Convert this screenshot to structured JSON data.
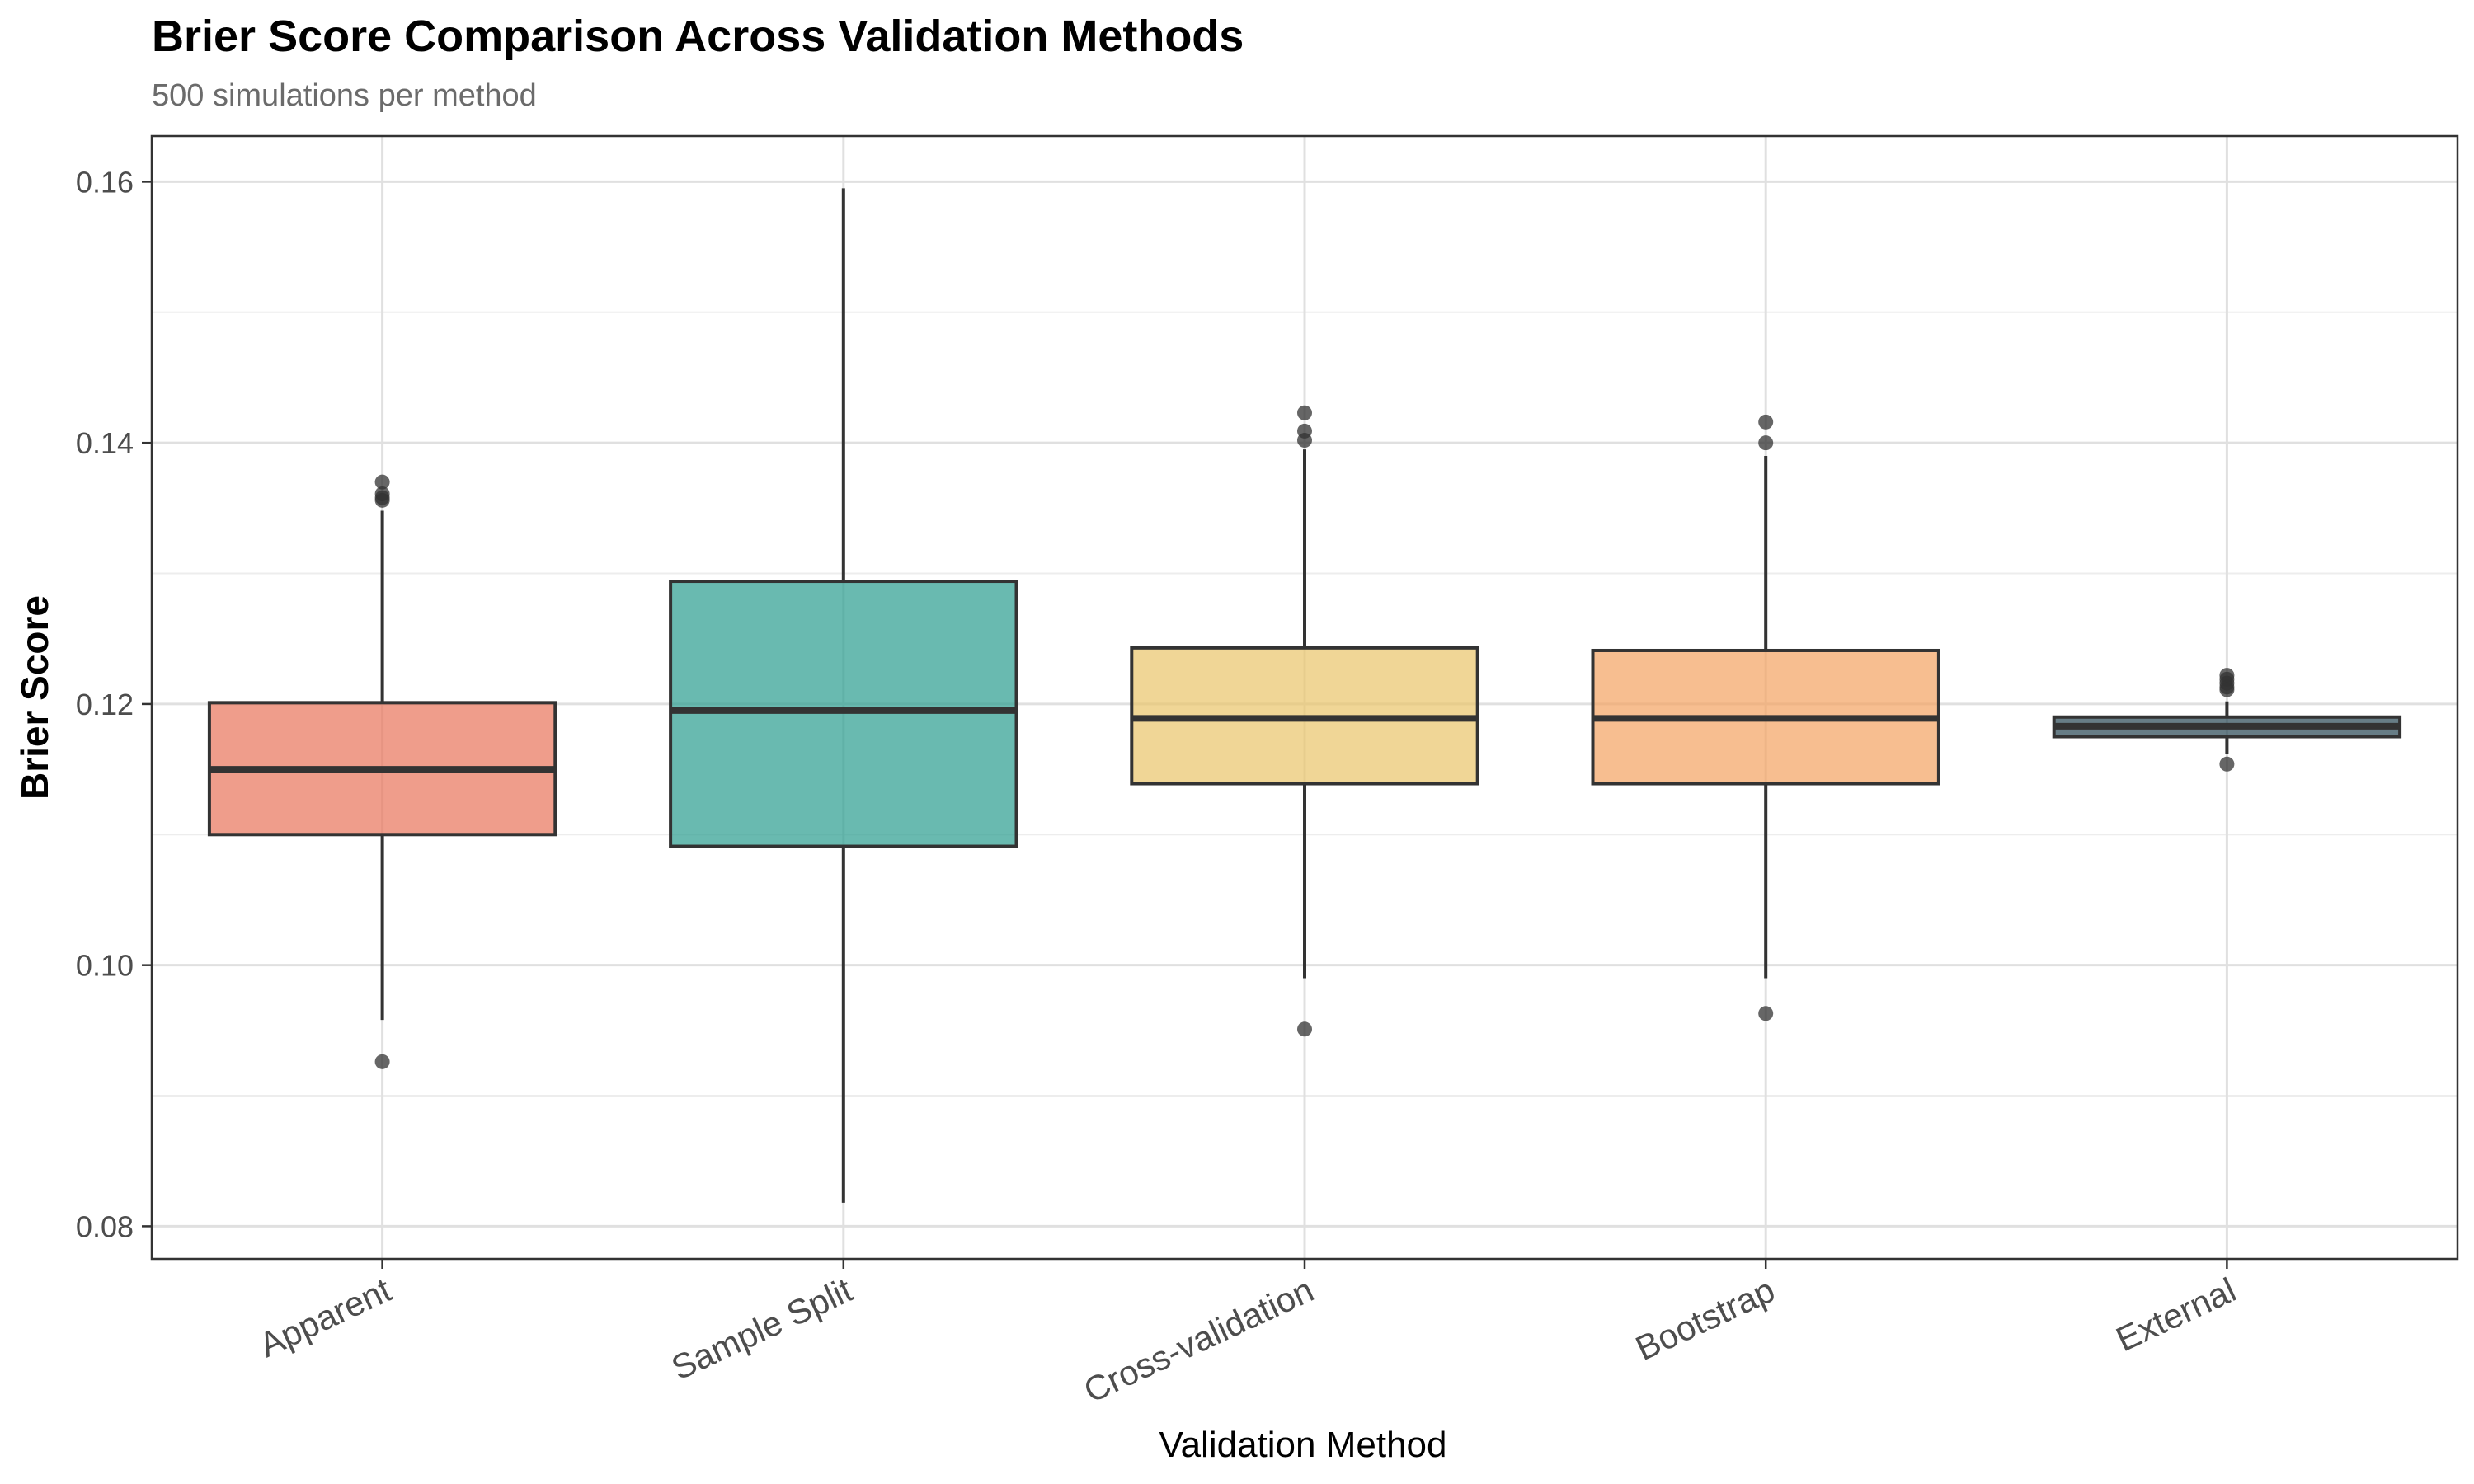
{
  "chart_data": {
    "type": "box",
    "title": "Brier Score Comparison Across Validation Methods",
    "subtitle": "500 simulations per method",
    "xlabel": "Validation Method",
    "ylabel": "Brier Score",
    "ylim": [
      0.0775,
      0.1635
    ],
    "yticks": [
      0.08,
      0.1,
      0.12,
      0.14,
      0.16
    ],
    "ytick_labels": [
      "0.08",
      "0.10",
      "0.12",
      "0.14",
      "0.16"
    ],
    "grid": true,
    "legend": "none",
    "categories": [
      "Apparent",
      "Sample Split",
      "Cross-validation",
      "Bootstrap",
      "External"
    ],
    "boxes": [
      {
        "name": "Apparent",
        "color": "#E8735A",
        "whisker_low": 0.0958,
        "q1": 0.11,
        "median": 0.115,
        "q3": 0.1201,
        "whisker_high": 0.1348,
        "outliers": [
          0.0926,
          0.1356,
          0.1358,
          0.1361,
          0.137
        ]
      },
      {
        "name": "Sample Split",
        "color": "#2A9D8F",
        "whisker_low": 0.0818,
        "q1": 0.1091,
        "median": 0.1195,
        "q3": 0.1294,
        "whisker_high": 0.1595,
        "outliers": []
      },
      {
        "name": "Cross-validation",
        "color": "#E9C46A",
        "whisker_low": 0.099,
        "q1": 0.1139,
        "median": 0.1189,
        "q3": 0.1243,
        "whisker_high": 0.1395,
        "outliers": [
          0.0951,
          0.1402,
          0.1409,
          0.1423
        ]
      },
      {
        "name": "Bootstrap",
        "color": "#F4A261",
        "whisker_low": 0.099,
        "q1": 0.1139,
        "median": 0.1189,
        "q3": 0.1241,
        "whisker_high": 0.139,
        "outliers": [
          0.0963,
          0.14,
          0.1416
        ]
      },
      {
        "name": "External",
        "color": "#264653",
        "whisker_low": 0.1162,
        "q1": 0.1175,
        "median": 0.1183,
        "q3": 0.119,
        "whisker_high": 0.1202,
        "outliers": [
          0.1154,
          0.1211,
          0.1213,
          0.1216,
          0.1219,
          0.1222
        ]
      }
    ]
  }
}
